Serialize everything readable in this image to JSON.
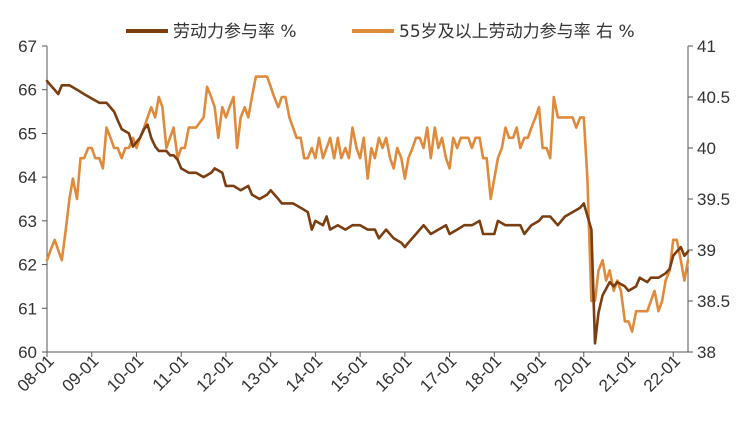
{
  "chart_data": {
    "type": "line",
    "title": "",
    "xlabel": "",
    "ylabel_left": "",
    "ylabel_right": "",
    "ylim_left": [
      60,
      67
    ],
    "ylim_right": [
      38,
      41
    ],
    "yticks_left": [
      "60",
      "61",
      "62",
      "63",
      "64",
      "65",
      "66",
      "67"
    ],
    "yticks_right": [
      "38",
      "38.5",
      "39",
      "39.5",
      "40",
      "40.5",
      "41"
    ],
    "x_range": [
      2008.0,
      2022.33
    ],
    "xticks": [
      {
        "label": "08-01",
        "year": 2008
      },
      {
        "label": "09-01",
        "year": 2009
      },
      {
        "label": "10-01",
        "year": 2010
      },
      {
        "label": "11-01",
        "year": 2011
      },
      {
        "label": "12-01",
        "year": 2012
      },
      {
        "label": "13-01",
        "year": 2013
      },
      {
        "label": "14-01",
        "year": 2014
      },
      {
        "label": "15-01",
        "year": 2015
      },
      {
        "label": "16-01",
        "year": 2016
      },
      {
        "label": "17-01",
        "year": 2017
      },
      {
        "label": "18-01",
        "year": 2018
      },
      {
        "label": "19-01",
        "year": 2019
      },
      {
        "label": "20-01",
        "year": 2020
      },
      {
        "label": "21-01",
        "year": 2021
      },
      {
        "label": "22-01",
        "year": 2022
      }
    ],
    "grid": false,
    "legend_position": "top",
    "series": [
      {
        "name": "劳动力参与率 %",
        "axis": "left",
        "color": "#7a3e10",
        "points": [
          [
            2008.0,
            66.2
          ],
          [
            2008.08,
            66.1
          ],
          [
            2008.17,
            66.0
          ],
          [
            2008.25,
            65.9
          ],
          [
            2008.33,
            66.1
          ],
          [
            2008.5,
            66.1
          ],
          [
            2008.67,
            66.0
          ],
          [
            2008.83,
            65.9
          ],
          [
            2009.0,
            65.8
          ],
          [
            2009.17,
            65.7
          ],
          [
            2009.33,
            65.7
          ],
          [
            2009.5,
            65.5
          ],
          [
            2009.58,
            65.3
          ],
          [
            2009.67,
            65.1
          ],
          [
            2009.83,
            65.0
          ],
          [
            2009.92,
            64.7
          ],
          [
            2010.0,
            64.8
          ],
          [
            2010.08,
            64.9
          ],
          [
            2010.17,
            65.1
          ],
          [
            2010.25,
            65.2
          ],
          [
            2010.33,
            64.9
          ],
          [
            2010.42,
            64.7
          ],
          [
            2010.5,
            64.6
          ],
          [
            2010.67,
            64.6
          ],
          [
            2010.75,
            64.5
          ],
          [
            2010.83,
            64.5
          ],
          [
            2010.92,
            64.4
          ],
          [
            2011.0,
            64.2
          ],
          [
            2011.17,
            64.1
          ],
          [
            2011.33,
            64.1
          ],
          [
            2011.5,
            64.0
          ],
          [
            2011.67,
            64.1
          ],
          [
            2011.75,
            64.2
          ],
          [
            2011.92,
            64.1
          ],
          [
            2012.0,
            63.8
          ],
          [
            2012.17,
            63.8
          ],
          [
            2012.33,
            63.7
          ],
          [
            2012.5,
            63.8
          ],
          [
            2012.58,
            63.6
          ],
          [
            2012.75,
            63.5
          ],
          [
            2012.92,
            63.6
          ],
          [
            2013.0,
            63.7
          ],
          [
            2013.17,
            63.5
          ],
          [
            2013.25,
            63.4
          ],
          [
            2013.5,
            63.4
          ],
          [
            2013.67,
            63.3
          ],
          [
            2013.83,
            63.2
          ],
          [
            2013.92,
            62.8
          ],
          [
            2014.0,
            63.0
          ],
          [
            2014.17,
            62.9
          ],
          [
            2014.25,
            63.1
          ],
          [
            2014.33,
            62.8
          ],
          [
            2014.5,
            62.9
          ],
          [
            2014.67,
            62.8
          ],
          [
            2014.83,
            62.9
          ],
          [
            2015.0,
            62.9
          ],
          [
            2015.17,
            62.8
          ],
          [
            2015.33,
            62.8
          ],
          [
            2015.42,
            62.6
          ],
          [
            2015.58,
            62.8
          ],
          [
            2015.75,
            62.6
          ],
          [
            2015.92,
            62.5
          ],
          [
            2016.0,
            62.4
          ],
          [
            2016.08,
            62.5
          ],
          [
            2016.25,
            62.7
          ],
          [
            2016.42,
            62.9
          ],
          [
            2016.58,
            62.7
          ],
          [
            2016.75,
            62.8
          ],
          [
            2016.92,
            62.9
          ],
          [
            2017.0,
            62.7
          ],
          [
            2017.17,
            62.8
          ],
          [
            2017.33,
            62.9
          ],
          [
            2017.5,
            62.9
          ],
          [
            2017.67,
            63.0
          ],
          [
            2017.75,
            62.7
          ],
          [
            2017.92,
            62.7
          ],
          [
            2018.0,
            62.7
          ],
          [
            2018.08,
            63.0
          ],
          [
            2018.25,
            62.9
          ],
          [
            2018.42,
            62.9
          ],
          [
            2018.58,
            62.9
          ],
          [
            2018.67,
            62.7
          ],
          [
            2018.83,
            62.9
          ],
          [
            2019.0,
            63.0
          ],
          [
            2019.08,
            63.1
          ],
          [
            2019.25,
            63.1
          ],
          [
            2019.42,
            62.9
          ],
          [
            2019.58,
            63.1
          ],
          [
            2019.75,
            63.2
          ],
          [
            2019.92,
            63.3
          ],
          [
            2020.0,
            63.4
          ],
          [
            2020.17,
            62.8
          ],
          [
            2020.25,
            60.2
          ],
          [
            2020.33,
            60.9
          ],
          [
            2020.42,
            61.3
          ],
          [
            2020.58,
            61.6
          ],
          [
            2020.67,
            61.5
          ],
          [
            2020.75,
            61.6
          ],
          [
            2020.92,
            61.5
          ],
          [
            2021.0,
            61.4
          ],
          [
            2021.17,
            61.5
          ],
          [
            2021.25,
            61.7
          ],
          [
            2021.42,
            61.6
          ],
          [
            2021.5,
            61.7
          ],
          [
            2021.67,
            61.7
          ],
          [
            2021.83,
            61.8
          ],
          [
            2021.92,
            61.9
          ],
          [
            2022.0,
            62.2
          ],
          [
            2022.08,
            62.3
          ],
          [
            2022.17,
            62.4
          ],
          [
            2022.25,
            62.2
          ],
          [
            2022.33,
            62.3
          ]
        ]
      },
      {
        "name": "55岁及以上劳动力参与率 右 %",
        "axis": "right",
        "color": "#e08a3c",
        "points": [
          [
            2008.0,
            38.9
          ],
          [
            2008.08,
            39.0
          ],
          [
            2008.17,
            39.1
          ],
          [
            2008.25,
            39.0
          ],
          [
            2008.33,
            38.9
          ],
          [
            2008.42,
            39.2
          ],
          [
            2008.5,
            39.5
          ],
          [
            2008.58,
            39.7
          ],
          [
            2008.67,
            39.5
          ],
          [
            2008.75,
            39.9
          ],
          [
            2008.83,
            39.9
          ],
          [
            2008.92,
            40.0
          ],
          [
            2009.0,
            40.0
          ],
          [
            2009.08,
            39.9
          ],
          [
            2009.17,
            39.9
          ],
          [
            2009.25,
            39.8
          ],
          [
            2009.33,
            40.2
          ],
          [
            2009.42,
            40.1
          ],
          [
            2009.5,
            40.0
          ],
          [
            2009.58,
            40.0
          ],
          [
            2009.67,
            39.9
          ],
          [
            2009.75,
            40.0
          ],
          [
            2009.83,
            40.0
          ],
          [
            2009.92,
            40.1
          ],
          [
            2010.0,
            40.0
          ],
          [
            2010.08,
            40.1
          ],
          [
            2010.17,
            40.2
          ],
          [
            2010.25,
            40.3
          ],
          [
            2010.33,
            40.4
          ],
          [
            2010.42,
            40.3
          ],
          [
            2010.5,
            40.5
          ],
          [
            2010.58,
            40.4
          ],
          [
            2010.67,
            40.0
          ],
          [
            2010.75,
            40.1
          ],
          [
            2010.83,
            40.2
          ],
          [
            2010.92,
            39.9
          ],
          [
            2011.0,
            40.0
          ],
          [
            2011.08,
            40.0
          ],
          [
            2011.17,
            40.2
          ],
          [
            2011.33,
            40.2
          ],
          [
            2011.5,
            40.3
          ],
          [
            2011.58,
            40.6
          ],
          [
            2011.67,
            40.5
          ],
          [
            2011.75,
            40.4
          ],
          [
            2011.83,
            40.1
          ],
          [
            2011.92,
            40.4
          ],
          [
            2012.0,
            40.3
          ],
          [
            2012.08,
            40.4
          ],
          [
            2012.17,
            40.5
          ],
          [
            2012.25,
            40.0
          ],
          [
            2012.33,
            40.3
          ],
          [
            2012.42,
            40.4
          ],
          [
            2012.5,
            40.3
          ],
          [
            2012.58,
            40.5
          ],
          [
            2012.67,
            40.7
          ],
          [
            2012.83,
            40.7
          ],
          [
            2012.92,
            40.7
          ],
          [
            2013.0,
            40.6
          ],
          [
            2013.08,
            40.5
          ],
          [
            2013.17,
            40.4
          ],
          [
            2013.25,
            40.5
          ],
          [
            2013.33,
            40.5
          ],
          [
            2013.42,
            40.3
          ],
          [
            2013.5,
            40.2
          ],
          [
            2013.58,
            40.1
          ],
          [
            2013.67,
            40.1
          ],
          [
            2013.75,
            39.9
          ],
          [
            2013.83,
            39.9
          ],
          [
            2013.92,
            40.0
          ],
          [
            2014.0,
            39.9
          ],
          [
            2014.08,
            40.1
          ],
          [
            2014.17,
            39.9
          ],
          [
            2014.25,
            40.0
          ],
          [
            2014.33,
            40.1
          ],
          [
            2014.42,
            39.9
          ],
          [
            2014.5,
            40.1
          ],
          [
            2014.58,
            39.9
          ],
          [
            2014.67,
            40.0
          ],
          [
            2014.75,
            39.9
          ],
          [
            2014.83,
            40.2
          ],
          [
            2014.92,
            40.0
          ],
          [
            2015.0,
            39.9
          ],
          [
            2015.08,
            40.1
          ],
          [
            2015.17,
            39.7
          ],
          [
            2015.25,
            40.0
          ],
          [
            2015.33,
            39.9
          ],
          [
            2015.42,
            40.1
          ],
          [
            2015.5,
            40.0
          ],
          [
            2015.58,
            40.1
          ],
          [
            2015.67,
            39.9
          ],
          [
            2015.75,
            39.8
          ],
          [
            2015.83,
            40.0
          ],
          [
            2015.92,
            39.9
          ],
          [
            2016.0,
            39.7
          ],
          [
            2016.08,
            39.9
          ],
          [
            2016.17,
            40.0
          ],
          [
            2016.25,
            40.1
          ],
          [
            2016.33,
            40.1
          ],
          [
            2016.42,
            40.0
          ],
          [
            2016.5,
            40.2
          ],
          [
            2016.58,
            39.9
          ],
          [
            2016.67,
            40.2
          ],
          [
            2016.75,
            40.0
          ],
          [
            2016.83,
            40.1
          ],
          [
            2016.92,
            39.9
          ],
          [
            2017.0,
            39.8
          ],
          [
            2017.08,
            40.1
          ],
          [
            2017.17,
            40.0
          ],
          [
            2017.25,
            40.1
          ],
          [
            2017.33,
            40.1
          ],
          [
            2017.42,
            40.1
          ],
          [
            2017.5,
            40.0
          ],
          [
            2017.58,
            40.1
          ],
          [
            2017.67,
            40.1
          ],
          [
            2017.75,
            39.9
          ],
          [
            2017.83,
            39.9
          ],
          [
            2017.92,
            39.5
          ],
          [
            2018.0,
            39.7
          ],
          [
            2018.08,
            39.9
          ],
          [
            2018.17,
            40.0
          ],
          [
            2018.25,
            40.2
          ],
          [
            2018.33,
            40.1
          ],
          [
            2018.42,
            40.1
          ],
          [
            2018.5,
            40.2
          ],
          [
            2018.58,
            40.0
          ],
          [
            2018.67,
            40.1
          ],
          [
            2018.75,
            40.1
          ],
          [
            2018.83,
            40.2
          ],
          [
            2018.92,
            40.3
          ],
          [
            2019.0,
            40.4
          ],
          [
            2019.08,
            40.0
          ],
          [
            2019.17,
            40.0
          ],
          [
            2019.25,
            39.9
          ],
          [
            2019.33,
            40.5
          ],
          [
            2019.42,
            40.3
          ],
          [
            2019.5,
            40.3
          ],
          [
            2019.58,
            40.3
          ],
          [
            2019.75,
            40.3
          ],
          [
            2019.83,
            40.2
          ],
          [
            2019.92,
            40.3
          ],
          [
            2020.0,
            40.3
          ],
          [
            2020.08,
            39.7
          ],
          [
            2020.17,
            38.5
          ],
          [
            2020.25,
            38.5
          ],
          [
            2020.33,
            38.8
          ],
          [
            2020.42,
            38.9
          ],
          [
            2020.5,
            38.7
          ],
          [
            2020.58,
            38.8
          ],
          [
            2020.67,
            38.6
          ],
          [
            2020.75,
            38.7
          ],
          [
            2020.83,
            38.6
          ],
          [
            2020.92,
            38.3
          ],
          [
            2021.0,
            38.3
          ],
          [
            2021.08,
            38.2
          ],
          [
            2021.17,
            38.4
          ],
          [
            2021.25,
            38.4
          ],
          [
            2021.33,
            38.4
          ],
          [
            2021.42,
            38.4
          ],
          [
            2021.5,
            38.5
          ],
          [
            2021.58,
            38.6
          ],
          [
            2021.67,
            38.4
          ],
          [
            2021.75,
            38.5
          ],
          [
            2021.83,
            38.7
          ],
          [
            2021.92,
            38.8
          ],
          [
            2022.0,
            39.1
          ],
          [
            2022.08,
            39.1
          ],
          [
            2022.17,
            38.9
          ],
          [
            2022.25,
            38.7
          ],
          [
            2022.33,
            38.9
          ]
        ]
      }
    ]
  }
}
